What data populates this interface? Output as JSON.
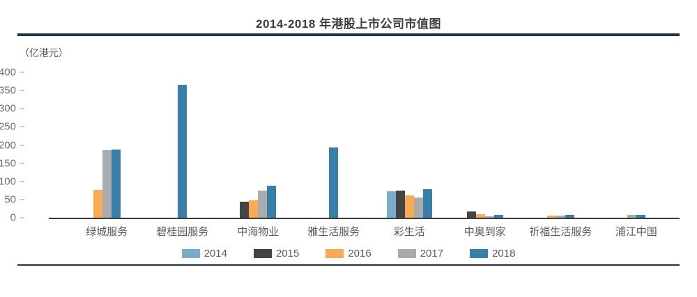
{
  "title": "2014-2018 年港股上市公司市值图",
  "unit_label": "（亿港元）",
  "colors": {
    "rule": "#233240",
    "axis": "#3b3b3b",
    "tick_text": "#6f6f6f",
    "label_text": "#595959",
    "title_text": "#3d3d3d"
  },
  "chart_data": {
    "type": "bar",
    "title": "2014-2018 年港股上市公司市值图",
    "ylabel": "（亿港元）",
    "xlabel": "",
    "ylim": [
      0,
      400
    ],
    "yticks": [
      0,
      50,
      100,
      150,
      200,
      250,
      300,
      350,
      400
    ],
    "grid": false,
    "legend_position": "bottom",
    "categories": [
      "绿城服务",
      "碧桂园服务",
      "中海物业",
      "雅生活服务",
      "彩生活",
      "中奥到家",
      "祈福生活服务",
      "浦江中国"
    ],
    "series": [
      {
        "name": "2014",
        "color": "#7BACC9",
        "values": [
          null,
          null,
          null,
          null,
          72,
          null,
          null,
          null
        ]
      },
      {
        "name": "2015",
        "color": "#454545",
        "values": [
          null,
          null,
          44,
          null,
          75,
          17,
          null,
          null
        ]
      },
      {
        "name": "2016",
        "color": "#F9AA55",
        "values": [
          77,
          null,
          48,
          null,
          62,
          10,
          6,
          null
        ]
      },
      {
        "name": "2017",
        "color": "#AAABAD",
        "values": [
          186,
          null,
          75,
          null,
          55,
          4,
          5,
          7
        ]
      },
      {
        "name": "2018",
        "color": "#387FA9",
        "values": [
          188,
          365,
          88,
          194,
          78,
          8,
          7,
          8
        ]
      }
    ]
  }
}
